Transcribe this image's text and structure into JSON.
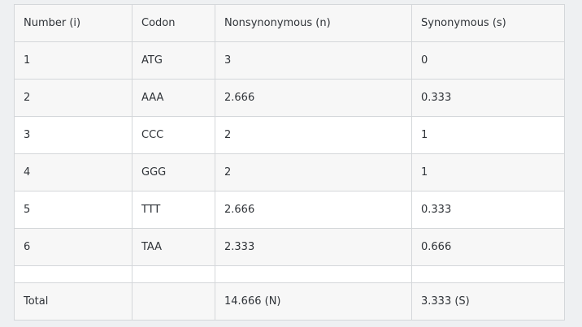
{
  "table": {
    "headers": [
      "Number (i)",
      "Codon",
      "Nonsynonymous (n)",
      "Synonymous (s)"
    ],
    "rows": [
      [
        "1",
        "ATG",
        "3",
        "0"
      ],
      [
        "2",
        "AAA",
        "2.666",
        "0.333"
      ],
      [
        "3",
        "CCC",
        "2",
        "1"
      ],
      [
        "4",
        "GGG",
        "2",
        "1"
      ],
      [
        "5",
        "TTT",
        "2.666",
        "0.333"
      ],
      [
        "6",
        "TAA",
        "2.333",
        "0.666"
      ]
    ],
    "total": [
      "Total",
      "",
      "14.666 (N)",
      "3.333 (S)"
    ]
  }
}
